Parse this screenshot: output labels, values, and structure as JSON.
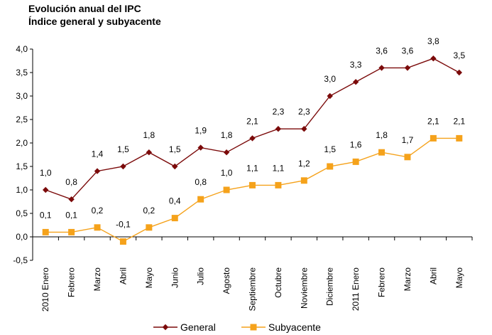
{
  "title_line1": "Evolución anual del IPC",
  "title_line2": "Índice general y subyacente",
  "chart_data": {
    "type": "line",
    "categories": [
      "2010 Enero",
      "Febrero",
      "Marzo",
      "Abril",
      "Mayo",
      "Junio",
      "Julio",
      "Agosto",
      "Septiembre",
      "Octubre",
      "Noviembre",
      "Diciembre",
      "2011 Enero",
      "Febrero",
      "Marzo",
      "Abril",
      "Mayo"
    ],
    "ylim": [
      -0.5,
      4.0
    ],
    "yticks": [
      "-0,5",
      "0,0",
      "0,5",
      "1,0",
      "1,5",
      "2,0",
      "2,5",
      "3,0",
      "3,5",
      "4,0"
    ],
    "ytick_values": [
      -0.5,
      0,
      0.5,
      1,
      1.5,
      2,
      2.5,
      3,
      3.5,
      4
    ],
    "grid": false,
    "legend_position": "bottom",
    "series": [
      {
        "name": "General",
        "color": "#7B0A0A",
        "marker": "diamond",
        "values": [
          1.0,
          0.8,
          1.4,
          1.5,
          1.8,
          1.5,
          1.9,
          1.8,
          2.1,
          2.3,
          2.3,
          3.0,
          3.3,
          3.6,
          3.6,
          3.8,
          3.5
        ],
        "labels": [
          "1,0",
          "0,8",
          "1,4",
          "1,5",
          "1,8",
          "1,5",
          "1,9",
          "1,8",
          "2,1",
          "2,3",
          "2,3",
          "3,0",
          "3,3",
          "3,6",
          "3,6",
          "3,8",
          "3,5"
        ]
      },
      {
        "name": "Subyacente",
        "color": "#F5A21B",
        "marker": "square",
        "values": [
          0.1,
          0.1,
          0.2,
          -0.1,
          0.2,
          0.4,
          0.8,
          1.0,
          1.1,
          1.1,
          1.2,
          1.5,
          1.6,
          1.8,
          1.7,
          2.1,
          2.1
        ],
        "labels": [
          "0,1",
          "0,1",
          "0,2",
          "-0,1",
          "0,2",
          "0,4",
          "0,8",
          "1,0",
          "1,1",
          "1,1",
          "1,2",
          "1,5",
          "1,6",
          "1,8",
          "1,7",
          "2,1",
          "2,1"
        ]
      }
    ]
  }
}
